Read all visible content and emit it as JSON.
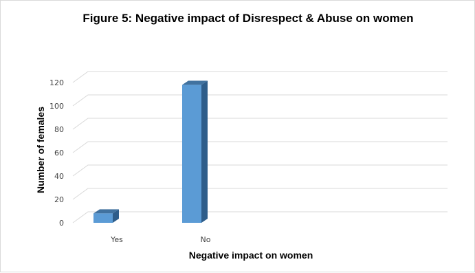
{
  "chart_data": {
    "type": "bar",
    "title": "Figure 5: Negative impact of Disrespect & Abuse on women",
    "xlabel": "Negative impact on women",
    "ylabel": "Number of females",
    "categories": [
      "Yes",
      "No"
    ],
    "values": [
      8,
      118
    ],
    "ylim": [
      0,
      120
    ],
    "yticks": [
      "0",
      "20",
      "40",
      "60",
      "80",
      "100",
      "120"
    ],
    "grid": true,
    "legend": "none",
    "colors": {
      "bar_front": "#5b9bd5",
      "bar_side": "#2e5d8a",
      "bar_top": "#41729f",
      "grid": "#d9d9d9"
    }
  }
}
